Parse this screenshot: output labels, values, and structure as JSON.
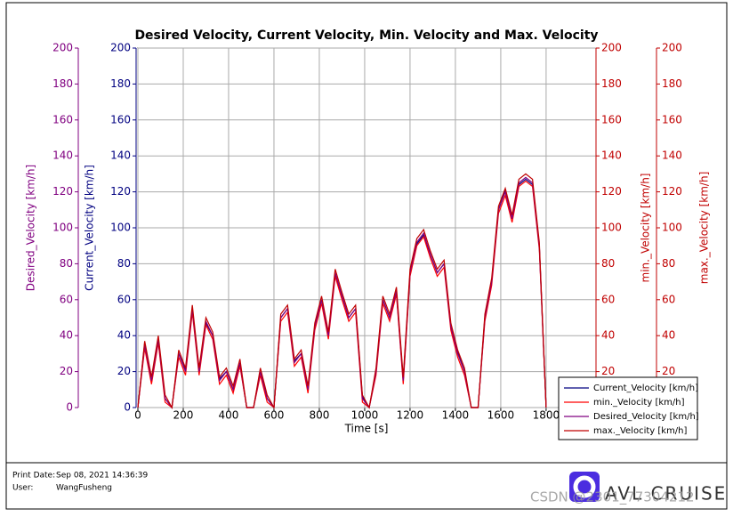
{
  "chart_data": {
    "type": "line",
    "title": "Desired Velocity, Current Velocity, Min. Velocity and Max. Velocity",
    "x_label": "Time [s]",
    "x": [
      0,
      30,
      60,
      90,
      120,
      150,
      180,
      210,
      240,
      270,
      300,
      330,
      360,
      390,
      420,
      450,
      480,
      510,
      540,
      570,
      600,
      630,
      660,
      690,
      720,
      750,
      780,
      810,
      840,
      870,
      900,
      930,
      960,
      990,
      1020,
      1050,
      1080,
      1110,
      1140,
      1170,
      1200,
      1230,
      1260,
      1290,
      1320,
      1350,
      1380,
      1410,
      1440,
      1470,
      1500,
      1530,
      1560,
      1590,
      1620,
      1650,
      1680,
      1710,
      1740,
      1770,
      1800
    ],
    "xlim": [
      0,
      2020
    ],
    "xticks": [
      0,
      200,
      400,
      600,
      800,
      1000,
      1200,
      1400,
      1600,
      1800
    ],
    "ylim": [
      0,
      200
    ],
    "yticks": [
      0,
      20,
      40,
      60,
      80,
      100,
      120,
      140,
      160,
      180,
      200
    ],
    "grid": true,
    "y_axes": [
      {
        "label": "Desired_Velocity [km/h]",
        "color": "#800080"
      },
      {
        "label": "Current_Velocity [km/h]",
        "color": "#000080"
      },
      {
        "label": "min._Velocity [km/h]",
        "color": "#c00000"
      },
      {
        "label": "max._Velocity [km/h]",
        "color": "#c00000"
      }
    ],
    "series": [
      {
        "name": "Current_Velocity [km/h]",
        "color": "#000080",
        "values": [
          0,
          36,
          14,
          37,
          5,
          0,
          30,
          21,
          55,
          21,
          47,
          40,
          16,
          20,
          10,
          24,
          0,
          0,
          20,
          5,
          0,
          50,
          55,
          26,
          30,
          11,
          45,
          60,
          41,
          74,
          62,
          50,
          55,
          6,
          0,
          20,
          60,
          50,
          64,
          15,
          74,
          91,
          96,
          85,
          75,
          80,
          45,
          31,
          20,
          0,
          0,
          50,
          70,
          110,
          121,
          105,
          124,
          127,
          124,
          90,
          0
        ]
      },
      {
        "name": "min._Velocity [km/h]",
        "color": "#ff0000",
        "values": [
          0,
          33,
          13,
          36,
          3,
          0,
          28,
          18,
          53,
          18,
          46,
          38,
          13,
          18,
          8,
          23,
          0,
          0,
          18,
          3,
          0,
          48,
          53,
          23,
          28,
          8,
          43,
          58,
          38,
          73,
          60,
          48,
          53,
          3,
          0,
          18,
          58,
          48,
          63,
          13,
          73,
          90,
          95,
          83,
          73,
          78,
          43,
          28,
          18,
          0,
          0,
          48,
          68,
          108,
          118,
          103,
          123,
          126,
          123,
          88,
          0
        ]
      },
      {
        "name": "Desired_Velocity [km/h]",
        "color": "#800080",
        "values": [
          0,
          35,
          15,
          38,
          5,
          0,
          30,
          20,
          55,
          20,
          48,
          40,
          15,
          20,
          10,
          25,
          0,
          0,
          20,
          5,
          0,
          50,
          55,
          25,
          30,
          10,
          45,
          60,
          40,
          75,
          62,
          50,
          55,
          5,
          0,
          20,
          60,
          50,
          65,
          15,
          75,
          92,
          97,
          85,
          75,
          80,
          45,
          30,
          20,
          0,
          0,
          50,
          70,
          110,
          120,
          105,
          125,
          128,
          125,
          90,
          0
        ]
      },
      {
        "name": "max._Velocity [km/h]",
        "color": "#c00000",
        "values": [
          0,
          37,
          17,
          40,
          7,
          0,
          32,
          22,
          57,
          22,
          50,
          42,
          17,
          22,
          12,
          27,
          0,
          0,
          22,
          7,
          0,
          52,
          57,
          27,
          32,
          12,
          47,
          62,
          42,
          77,
          64,
          52,
          57,
          7,
          0,
          22,
          62,
          52,
          67,
          17,
          77,
          94,
          99,
          87,
          77,
          82,
          47,
          32,
          22,
          0,
          0,
          52,
          72,
          112,
          122,
          107,
          127,
          130,
          127,
          92,
          0
        ]
      }
    ]
  },
  "footer": {
    "print_date_label": "Print Date:",
    "print_date": "Sep 08, 2021 14:36:39",
    "user_label": "User:",
    "user": "WangFusheng",
    "brand": "AVL CRUISE",
    "watermark": "CSDN @2301_77304212"
  }
}
